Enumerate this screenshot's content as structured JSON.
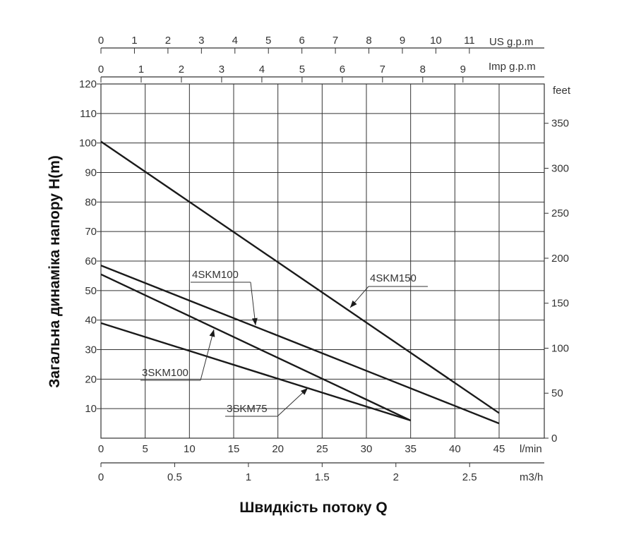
{
  "chart_data": {
    "type": "line",
    "ylabel": "Загальна динаміка напору H(m)",
    "xlabel": "Швидкість потоку Q",
    "x_units": {
      "lmin": "l/min",
      "m3h": "m3/h",
      "imp": "Imp g.p.m",
      "us": "US g.p.m"
    },
    "y_units": {
      "feet": "feet"
    },
    "xlim": [
      0,
      45
    ],
    "ylim": [
      0,
      120
    ],
    "x_ticks_lmin": [
      0,
      5,
      10,
      15,
      20,
      25,
      30,
      35,
      40,
      45
    ],
    "y_ticks_m": [
      10,
      20,
      30,
      40,
      50,
      60,
      70,
      80,
      90,
      100,
      110,
      120
    ],
    "x_ticks_m3h": [
      "0",
      "0.5",
      "1",
      "1.5",
      "2",
      "2.5"
    ],
    "x_ticks_imp": [
      "0",
      "1",
      "2",
      "3",
      "4",
      "5",
      "6",
      "7",
      "8",
      "9"
    ],
    "x_ticks_us": [
      "0",
      "1",
      "2",
      "3",
      "4",
      "5",
      "6",
      "7",
      "8",
      "9",
      "10",
      "11"
    ],
    "y_ticks_feet": [
      "0",
      "50",
      "100",
      "150",
      "200",
      "250",
      "300",
      "350"
    ],
    "grid": true,
    "series": [
      {
        "name": "4SKM150",
        "x": [
          0,
          45
        ],
        "y": [
          100.5,
          8.5
        ]
      },
      {
        "name": "4SKM100",
        "x": [
          0,
          45
        ],
        "y": [
          58.5,
          5
        ]
      },
      {
        "name": "3SKM100",
        "x": [
          0,
          35
        ],
        "y": [
          55.5,
          6
        ]
      },
      {
        "name": "3SKM75",
        "x": [
          0,
          35
        ],
        "y": [
          39,
          6
        ]
      }
    ],
    "colors": {
      "line": "#1a1a1a",
      "grid": "#333333",
      "text": "#333333"
    }
  }
}
